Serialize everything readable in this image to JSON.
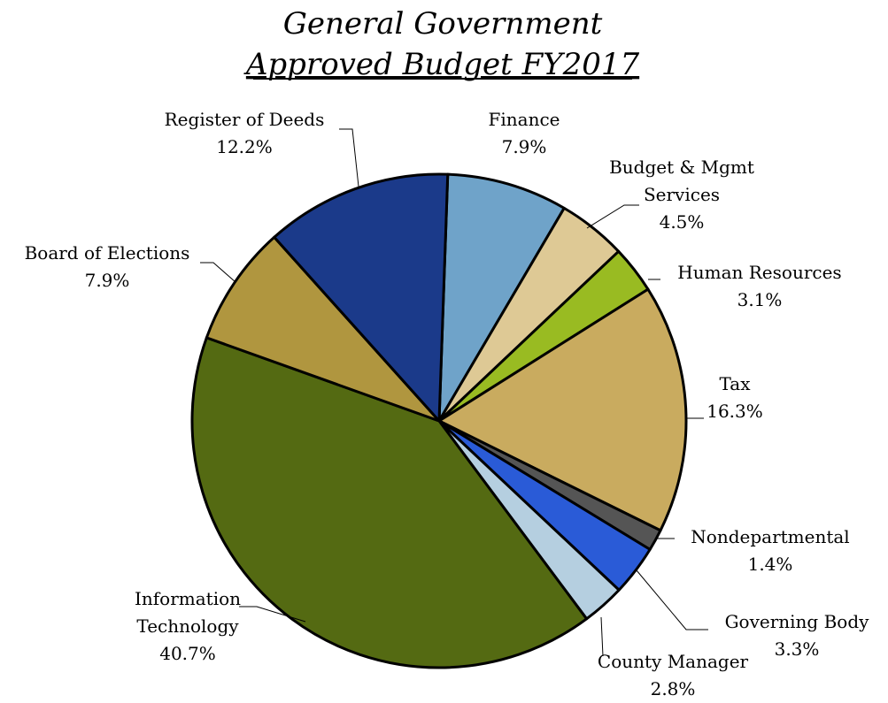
{
  "chart_data": {
    "type": "pie",
    "title": "General Government",
    "subtitle": "Approved Budget FY2017",
    "slices": [
      {
        "label": "Finance",
        "value": 7.9,
        "display": "7.9%",
        "color": "#6fa3c9"
      },
      {
        "label": "Budget & Mgmt Services",
        "label_lines": [
          "Budget & Mgmt",
          "Services"
        ],
        "value": 4.5,
        "display": "4.5%",
        "color": "#dec995"
      },
      {
        "label": "Human Resources",
        "value": 3.1,
        "display": "3.1%",
        "color": "#99bb22"
      },
      {
        "label": "Tax",
        "value": 16.3,
        "display": "16.3%",
        "color": "#c9ab5f"
      },
      {
        "label": "Nondepartmental",
        "value": 1.4,
        "display": "1.4%",
        "color": "#555555"
      },
      {
        "label": "Governing Body",
        "value": 3.3,
        "display": "3.3%",
        "color": "#2a5bd7"
      },
      {
        "label": "County Manager",
        "value": 2.8,
        "display": "2.8%",
        "color": "#b5cfe0"
      },
      {
        "label": "Information Technology",
        "label_lines": [
          "Information",
          "Technology"
        ],
        "value": 40.7,
        "display": "40.7%",
        "color": "#546a12"
      },
      {
        "label": "Board of Elections",
        "value": 7.9,
        "display": "7.9%",
        "color": "#b0963f"
      },
      {
        "label": "Register of Deeds",
        "value": 12.2,
        "display": "12.2%",
        "color": "#1b3a8a"
      }
    ]
  }
}
